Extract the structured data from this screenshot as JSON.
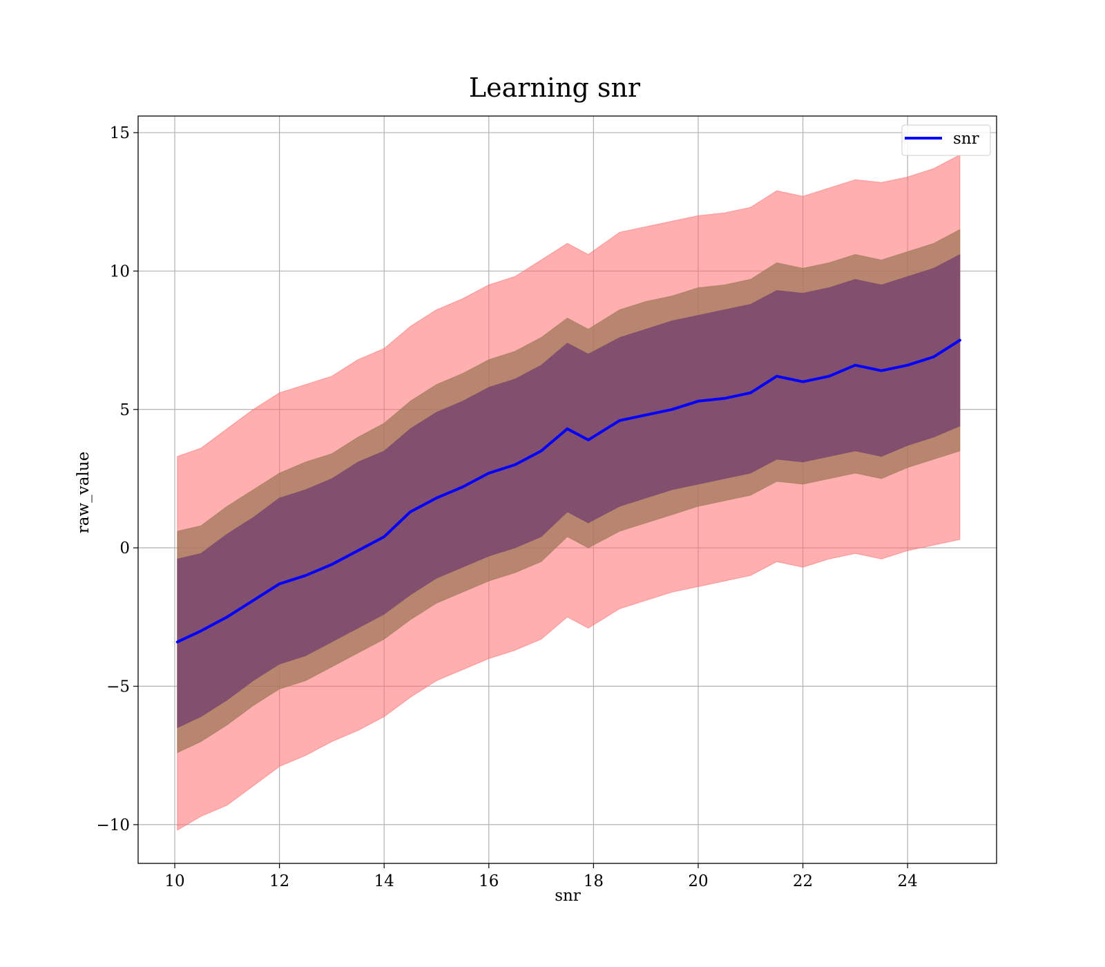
{
  "chart_data": {
    "type": "line",
    "title": "Learning snr",
    "xlabel": "snr",
    "ylabel": "raw_value",
    "xlim": [
      9.3,
      25.7
    ],
    "ylim": [
      -11.4,
      15.6
    ],
    "x_ticks": [
      10,
      12,
      14,
      16,
      18,
      20,
      22,
      24
    ],
    "y_ticks": [
      -10,
      -5,
      0,
      5,
      10,
      15
    ],
    "y_tick_labels": [
      "−10",
      "−5",
      "0",
      "5",
      "10",
      "15"
    ],
    "grid": true,
    "legend": {
      "placement": "top-right",
      "entries": [
        "snr"
      ]
    },
    "colors": {
      "line": "#0000ff",
      "band_outer": "#ff6e6e",
      "band_middle": "#a0785a",
      "band_inner": "#78466e",
      "grid": "#b0b0b0"
    },
    "x": [
      10.05,
      10.5,
      11.0,
      11.5,
      12.0,
      12.5,
      13.0,
      13.5,
      14.0,
      14.5,
      15.0,
      15.5,
      16.0,
      16.5,
      17.0,
      17.5,
      17.9,
      18.5,
      19.0,
      19.5,
      20.0,
      20.5,
      21.0,
      21.5,
      22.0,
      22.5,
      23.0,
      23.5,
      24.0,
      24.5,
      25.0
    ],
    "series": [
      {
        "name": "snr",
        "values": [
          -3.4,
          -3.0,
          -2.5,
          -1.9,
          -1.3,
          -1.0,
          -0.6,
          -0.1,
          0.4,
          1.3,
          1.8,
          2.2,
          2.7,
          3.0,
          3.5,
          4.3,
          3.9,
          4.6,
          4.8,
          5.0,
          5.3,
          5.4,
          5.6,
          6.2,
          6.0,
          6.2,
          6.6,
          6.4,
          6.6,
          6.9,
          7.5
        ]
      }
    ],
    "bands": [
      {
        "lower": [
          -10.2,
          -9.7,
          -9.3,
          -8.6,
          -7.9,
          -7.5,
          -7.0,
          -6.6,
          -6.1,
          -5.4,
          -4.8,
          -4.4,
          -4.0,
          -3.7,
          -3.3,
          -2.5,
          -2.9,
          -2.2,
          -1.9,
          -1.6,
          -1.4,
          -1.2,
          -1.0,
          -0.5,
          -0.7,
          -0.4,
          -0.2,
          -0.4,
          -0.1,
          0.1,
          0.3
        ],
        "upper": [
          3.3,
          3.6,
          4.3,
          5.0,
          5.6,
          5.9,
          6.2,
          6.8,
          7.2,
          8.0,
          8.6,
          9.0,
          9.5,
          9.8,
          10.4,
          11.0,
          10.6,
          11.4,
          11.6,
          11.8,
          12.0,
          12.1,
          12.3,
          12.9,
          12.7,
          13.0,
          13.3,
          13.2,
          13.4,
          13.7,
          14.2
        ]
      },
      {
        "lower": [
          -7.4,
          -7.0,
          -6.4,
          -5.7,
          -5.1,
          -4.8,
          -4.3,
          -3.8,
          -3.3,
          -2.6,
          -2.0,
          -1.6,
          -1.2,
          -0.9,
          -0.5,
          0.4,
          0.0,
          0.6,
          0.9,
          1.2,
          1.5,
          1.7,
          1.9,
          2.4,
          2.3,
          2.5,
          2.7,
          2.5,
          2.9,
          3.2,
          3.5
        ],
        "upper": [
          0.6,
          0.8,
          1.5,
          2.1,
          2.7,
          3.1,
          3.4,
          4.0,
          4.5,
          5.3,
          5.9,
          6.3,
          6.8,
          7.1,
          7.6,
          8.3,
          7.9,
          8.6,
          8.9,
          9.1,
          9.4,
          9.5,
          9.7,
          10.3,
          10.1,
          10.3,
          10.6,
          10.4,
          10.7,
          11.0,
          11.5
        ]
      },
      {
        "lower": [
          -6.5,
          -6.1,
          -5.5,
          -4.8,
          -4.2,
          -3.9,
          -3.4,
          -2.9,
          -2.4,
          -1.7,
          -1.1,
          -0.7,
          -0.3,
          0.0,
          0.4,
          1.3,
          0.9,
          1.5,
          1.8,
          2.1,
          2.3,
          2.5,
          2.7,
          3.2,
          3.1,
          3.3,
          3.5,
          3.3,
          3.7,
          4.0,
          4.4
        ],
        "upper": [
          -0.4,
          -0.2,
          0.5,
          1.1,
          1.8,
          2.1,
          2.5,
          3.1,
          3.5,
          4.3,
          4.9,
          5.3,
          5.8,
          6.1,
          6.6,
          7.4,
          7.0,
          7.6,
          7.9,
          8.2,
          8.4,
          8.6,
          8.8,
          9.3,
          9.2,
          9.4,
          9.7,
          9.5,
          9.8,
          10.1,
          10.6
        ]
      }
    ]
  }
}
